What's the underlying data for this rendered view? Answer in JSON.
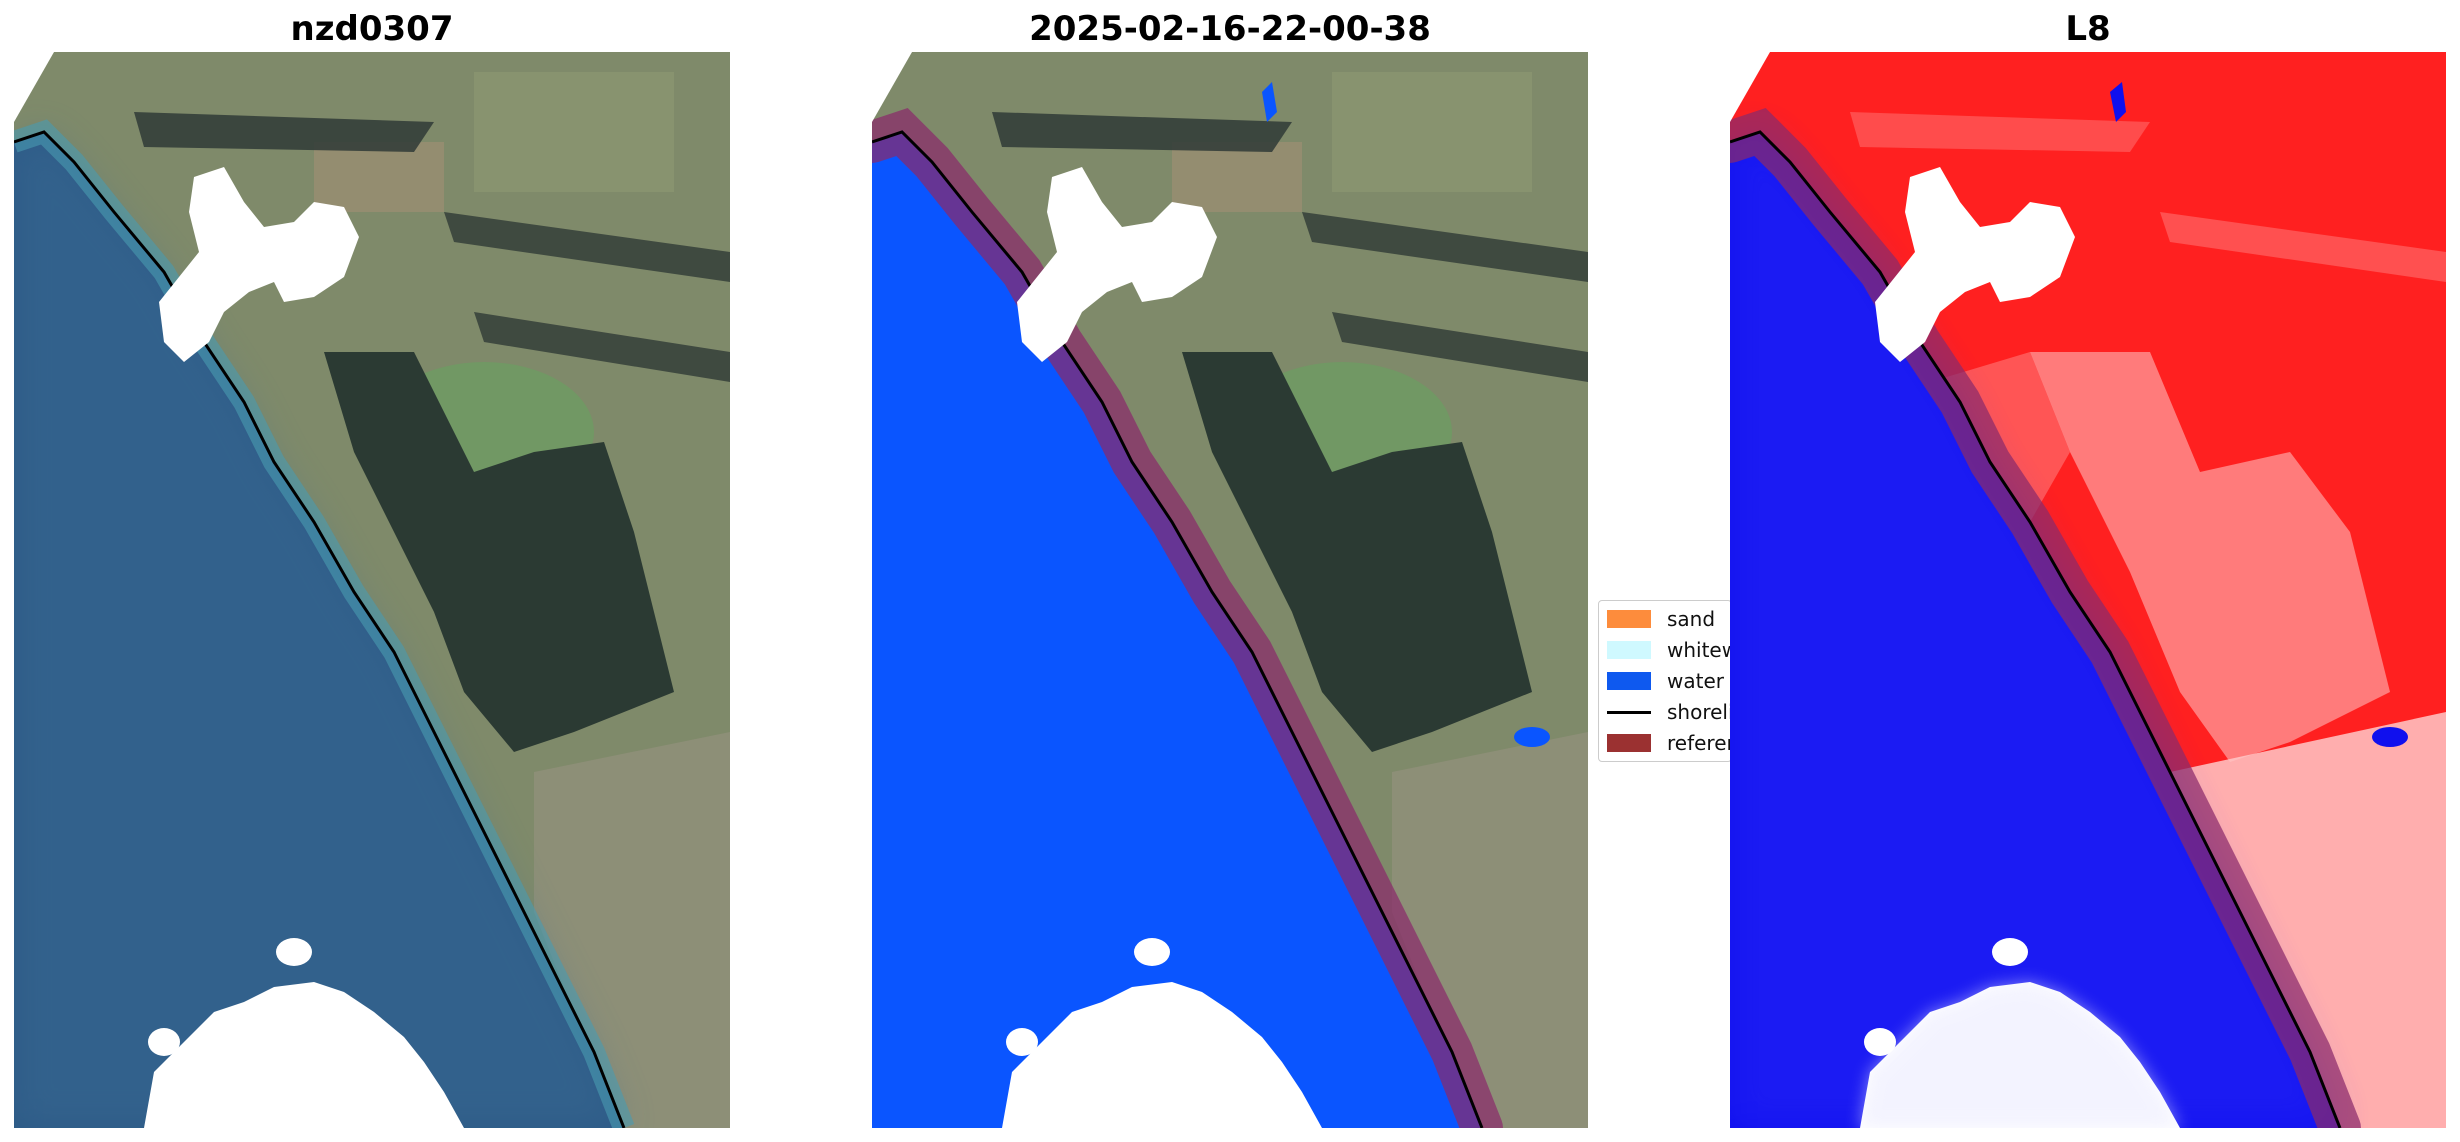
{
  "figure": {
    "titles": [
      "nzd0307",
      "2025-02-16-22-00-38",
      "L8"
    ]
  },
  "legend": {
    "items": [
      {
        "label": "sand",
        "color": "#fd8c3c",
        "kind": "patch"
      },
      {
        "label": "whitewater",
        "color": "#cff9ff",
        "kind": "patch"
      },
      {
        "label": "water",
        "color": "#0e59ef",
        "kind": "patch"
      },
      {
        "label": "shoreline",
        "color": "#000000",
        "kind": "line"
      },
      {
        "label": "reference",
        "color": "#9b3131",
        "kind": "patch"
      }
    ]
  },
  "colors": {
    "water_class": "#0a55ff",
    "sea_rgb": "#2d5a86",
    "land_rgb": "#7f8a6a",
    "forest_rgb": "#2b3a33",
    "reference_buffer": "#8b2a6b",
    "cloud": "#ffffff",
    "index_water": "#1010ee",
    "index_land": "#ff2020"
  }
}
